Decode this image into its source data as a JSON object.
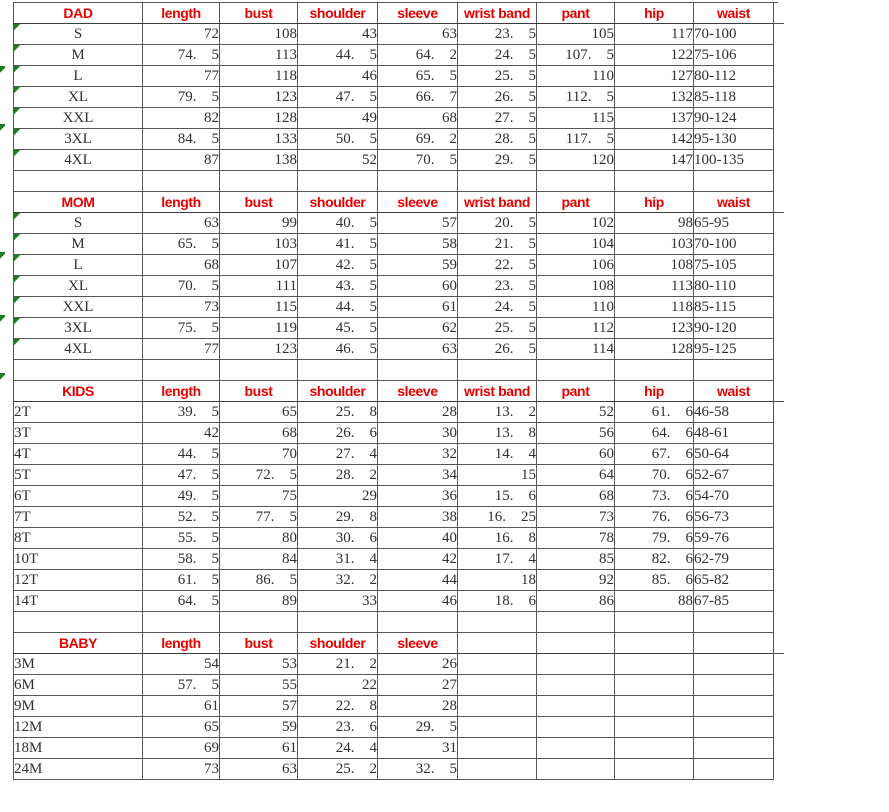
{
  "colors": {
    "header_text": "#e60000",
    "body_text": "#303030",
    "grid_border": "#565656",
    "error_indicator": "#1e7d1e",
    "background": "#ffffff"
  },
  "chart_data": [
    {
      "type": "table",
      "title": "DAD",
      "columns": [
        "length",
        "bust",
        "shoulder",
        "sleeve",
        "wrist band",
        "pant",
        "hip",
        "waist"
      ],
      "label_align": "center",
      "row_error_marks": true,
      "rows": [
        {
          "size": "S",
          "values": [
            "72",
            "108",
            "43",
            "63",
            "23.5",
            "105",
            "117",
            "70-100"
          ]
        },
        {
          "size": "M",
          "values": [
            "74.5",
            "113",
            "44.5",
            "64.2",
            "24.5",
            "107.5",
            "122",
            "75-106"
          ]
        },
        {
          "size": "L",
          "values": [
            "77",
            "118",
            "46",
            "65.5",
            "25.5",
            "110",
            "127",
            "80-112"
          ]
        },
        {
          "size": "XL",
          "values": [
            "79.5",
            "123",
            "47.5",
            "66.7",
            "26.5",
            "112.5",
            "132",
            "85-118"
          ]
        },
        {
          "size": "XXL",
          "values": [
            "82",
            "128",
            "49",
            "68",
            "27.5",
            "115",
            "137",
            "90-124"
          ]
        },
        {
          "size": "3XL",
          "values": [
            "84.5",
            "133",
            "50.5",
            "69.2",
            "28.5",
            "117.5",
            "142",
            "95-130"
          ]
        },
        {
          "size": "4XL",
          "values": [
            "87",
            "138",
            "52",
            "70.5",
            "29.5",
            "120",
            "147",
            "100-135"
          ]
        }
      ]
    },
    {
      "type": "table",
      "title": "MOM",
      "columns": [
        "length",
        "bust",
        "shoulder",
        "sleeve",
        "wrist band",
        "pant",
        "hip",
        "waist"
      ],
      "label_align": "center",
      "row_error_marks": true,
      "rows": [
        {
          "size": "S",
          "values": [
            "63",
            "99",
            "40.5",
            "57",
            "20.5",
            "102",
            "98",
            "65-95"
          ]
        },
        {
          "size": "M",
          "values": [
            "65.5",
            "103",
            "41.5",
            "58",
            "21.5",
            "104",
            "103",
            "70-100"
          ]
        },
        {
          "size": "L",
          "values": [
            "68",
            "107",
            "42.5",
            "59",
            "22.5",
            "106",
            "108",
            "75-105"
          ]
        },
        {
          "size": "XL",
          "values": [
            "70.5",
            "111",
            "43.5",
            "60",
            "23.5",
            "108",
            "113",
            "80-110"
          ]
        },
        {
          "size": "XXL",
          "values": [
            "73",
            "115",
            "44.5",
            "61",
            "24.5",
            "110",
            "118",
            "85-115"
          ]
        },
        {
          "size": "3XL",
          "values": [
            "75.5",
            "119",
            "45.5",
            "62",
            "25.5",
            "112",
            "123",
            "90-120"
          ]
        },
        {
          "size": "4XL",
          "values": [
            "77",
            "123",
            "46.5",
            "63",
            "26.5",
            "114",
            "128",
            "95-125"
          ]
        }
      ]
    },
    {
      "type": "table",
      "title": "KIDS",
      "columns": [
        "length",
        "bust",
        "shoulder",
        "sleeve",
        "wrist band",
        "pant",
        "hip",
        "waist"
      ],
      "label_align": "left",
      "row_error_marks": false,
      "rows": [
        {
          "size": "2T",
          "values": [
            "39.5",
            "65",
            "25.8",
            "28",
            "13.2",
            "52",
            "61.6",
            "46-58"
          ]
        },
        {
          "size": "3T",
          "values": [
            "42",
            "68",
            "26.6",
            "30",
            "13.8",
            "56",
            "64.6",
            "48-61"
          ]
        },
        {
          "size": "4T",
          "values": [
            "44.5",
            "70",
            "27.4",
            "32",
            "14.4",
            "60",
            "67.6",
            "50-64"
          ]
        },
        {
          "size": "5T",
          "values": [
            "47.5",
            "72.5",
            "28.2",
            "34",
            "15",
            "64",
            "70.6",
            "52-67"
          ]
        },
        {
          "size": "6T",
          "values": [
            "49.5",
            "75",
            "29",
            "36",
            "15.6",
            "68",
            "73.6",
            "54-70"
          ]
        },
        {
          "size": "7T",
          "values": [
            "52.5",
            "77.5",
            "29.8",
            "38",
            "16.25",
            "73",
            "76.6",
            "56-73"
          ]
        },
        {
          "size": "8T",
          "values": [
            "55.5",
            "80",
            "30.6",
            "40",
            "16.8",
            "78",
            "79.6",
            "59-76"
          ]
        },
        {
          "size": "10T",
          "values": [
            "58.5",
            "84",
            "31.4",
            "42",
            "17.4",
            "85",
            "82.6",
            "62-79"
          ]
        },
        {
          "size": "12T",
          "values": [
            "61.5",
            "86.5",
            "32.2",
            "44",
            "18",
            "92",
            "85.6",
            "65-82"
          ]
        },
        {
          "size": "14T",
          "values": [
            "64.5",
            "89",
            "33",
            "46",
            "18.6",
            "86",
            "88",
            "67-85"
          ]
        }
      ]
    },
    {
      "type": "table",
      "title": "BABY",
      "columns": [
        "length",
        "bust",
        "shoulder",
        "sleeve",
        "",
        "",
        "",
        ""
      ],
      "label_align": "left",
      "row_error_marks": false,
      "rows": [
        {
          "size": "3M",
          "values": [
            "54",
            "53",
            "21.2",
            "26",
            "",
            "",
            "",
            ""
          ]
        },
        {
          "size": "6M",
          "values": [
            "57.5",
            "55",
            "22",
            "27",
            "",
            "",
            "",
            ""
          ]
        },
        {
          "size": "9M",
          "values": [
            "61",
            "57",
            "22.8",
            "28",
            "",
            "",
            "",
            ""
          ]
        },
        {
          "size": "12M",
          "values": [
            "65",
            "59",
            "23.6",
            "29.5",
            "",
            "",
            "",
            ""
          ]
        },
        {
          "size": "18M",
          "values": [
            "69",
            "61",
            "24.4",
            "31",
            "",
            "",
            "",
            ""
          ]
        },
        {
          "size": "24M",
          "values": [
            "73",
            "63",
            "25.2",
            "32.5",
            "",
            "",
            "",
            ""
          ]
        }
      ]
    }
  ]
}
